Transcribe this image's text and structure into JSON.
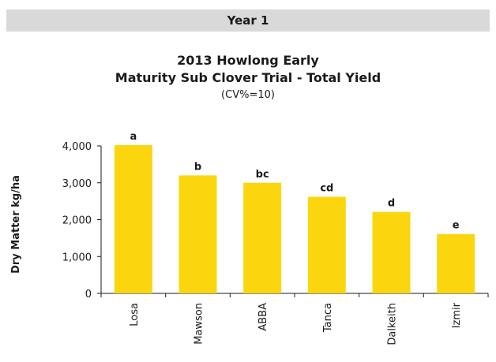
{
  "banner": "Year 1",
  "chart_data": {
    "type": "bar",
    "title": "2013 Howlong Early",
    "title_line2": "Maturity Sub Clover Trial - Total Yield",
    "subtitle": "(CV%=10)",
    "xlabel": "",
    "ylabel": "Dry Matter kg/ha",
    "ylim": [
      0,
      4000
    ],
    "yticks": [
      0,
      1000,
      2000,
      3000,
      4000
    ],
    "ytick_labels": [
      "0",
      "1,000",
      "2,000",
      "3,000",
      "4,000"
    ],
    "grid": false,
    "legend": "none",
    "categories": [
      "Losa",
      "Mawson",
      "ABBA",
      "Tanca",
      "Dalkeith",
      "Izmir"
    ],
    "values": [
      4020,
      3200,
      3000,
      2620,
      2210,
      1610
    ],
    "significance_labels": [
      "a",
      "b",
      "bc",
      "cd",
      "d",
      "e"
    ],
    "bar_color": "#fbd60f"
  }
}
